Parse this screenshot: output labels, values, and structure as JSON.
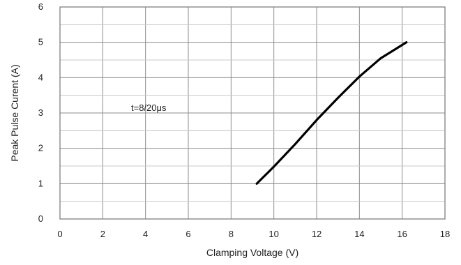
{
  "chart_data": {
    "type": "line",
    "title": "",
    "xlabel": "Clamping Voltage (V)",
    "ylabel": "Peak  Pulse Curent (A)",
    "xlim": [
      0,
      18
    ],
    "ylim": [
      0,
      6
    ],
    "xticks": [
      0,
      2,
      4,
      6,
      8,
      10,
      12,
      14,
      16,
      18
    ],
    "yticks": [
      0,
      1,
      2,
      3,
      4,
      5,
      6
    ],
    "x_tick_labels": [
      "0",
      "2",
      "4",
      "6",
      "8",
      "10",
      "12",
      "14",
      "16",
      "18"
    ],
    "y_tick_labels": [
      "0",
      "1",
      "2",
      "3",
      "4",
      "5",
      "6"
    ],
    "grid": true,
    "minor_grid_y": true,
    "annotation": "t=8/20μs",
    "series": [
      {
        "x": [
          9.2,
          10.0,
          11.0,
          12.0,
          13.0,
          14.0,
          15.0,
          16.2
        ],
        "y": [
          1.0,
          1.48,
          2.12,
          2.8,
          3.43,
          4.03,
          4.55,
          5.0
        ],
        "color": "#000000"
      }
    ]
  }
}
